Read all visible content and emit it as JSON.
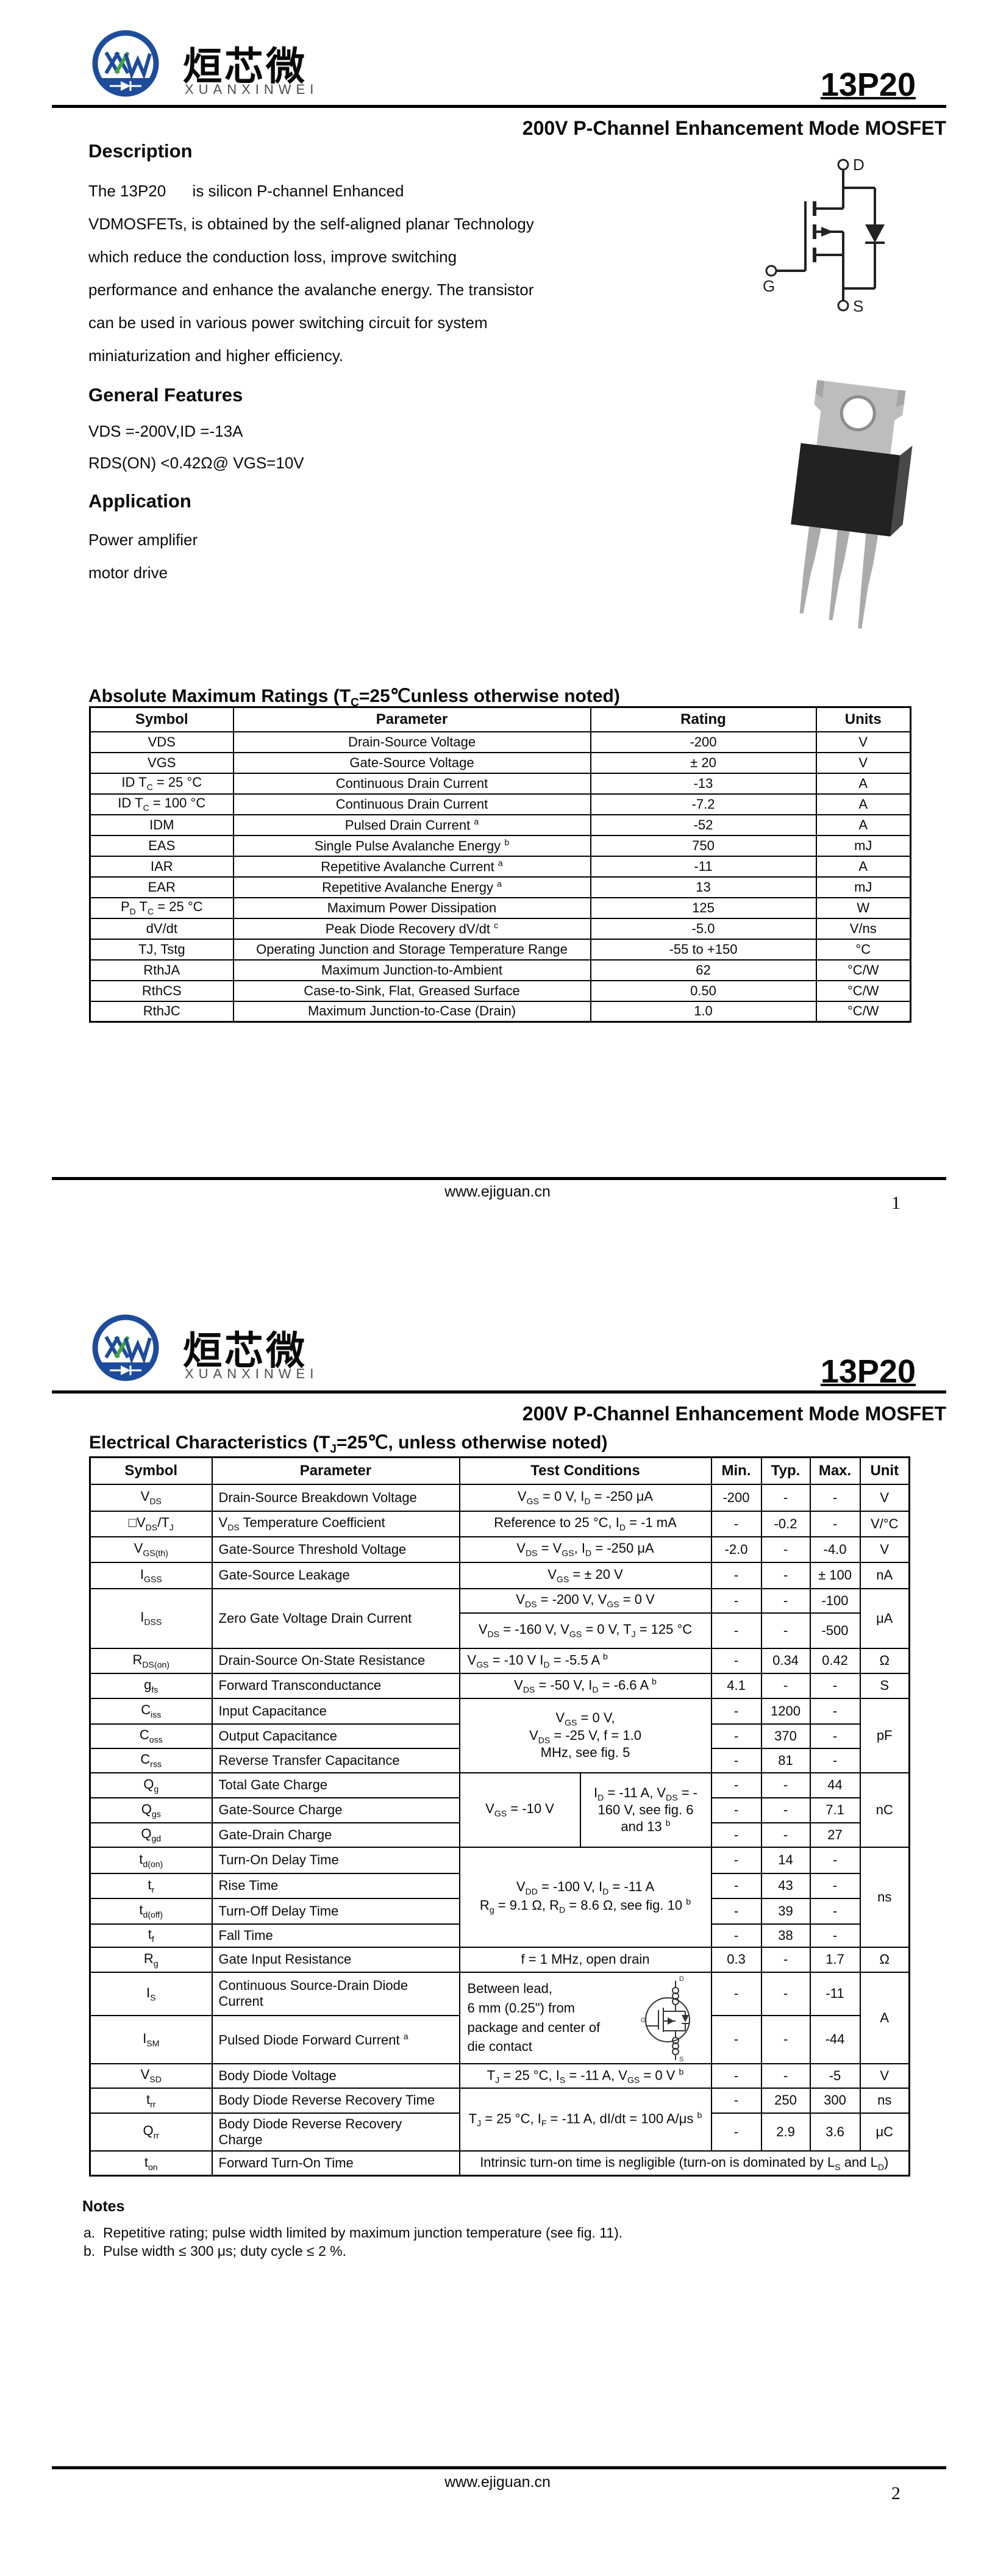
{
  "brand": {
    "chinese": "烜芯微",
    "romanized": "XUANXINWEI"
  },
  "header": {
    "part_number": "13P20",
    "subtitle": "200V P-Channel Enhancement Mode MOSFET"
  },
  "colors": {
    "logo_blue": "#1e4c9c",
    "logo_green": "#3fa43d",
    "text": "#0a0a0a"
  },
  "page1": {
    "description_title": "Description",
    "description_lines": [
      "The 13P20      is silicon P-channel Enhanced",
      "VDMOSFETs, is obtained by the self-aligned planar Technology",
      "which reduce the conduction loss, improve switching",
      "performance and enhance the avalanche energy. The transistor",
      "can be used in various power switching circuit for system",
      "miniaturization and higher efficiency."
    ],
    "features_title": "General Features",
    "features": [
      "VDS =-200V,ID =-13A",
      "RDS(ON) <0.42Ω@ VGS=10V"
    ],
    "application_title": "Application",
    "applications": [
      "Power amplifier",
      "motor drive"
    ],
    "symbol_labels": {
      "d": "D",
      "g": "G",
      "s": "S"
    },
    "abs": {
      "title": "Absolute Maximum Ratings (T~C~=25℃unless otherwise noted)",
      "headers": [
        "Symbol",
        "Parameter",
        "Rating",
        "Units"
      ],
      "rows": [
        [
          "VDS",
          "Drain-Source Voltage",
          "-200",
          "V"
        ],
        [
          "VGS",
          "Gate-Source Voltage",
          "± 20",
          "V"
        ],
        [
          "ID T~C~ = 25 °C",
          "Continuous Drain Current",
          "-13",
          "A"
        ],
        [
          "ID T~C~ = 100 °C",
          "Continuous Drain Current",
          "-7.2",
          "A"
        ],
        [
          "IDM",
          "Pulsed Drain Current ^a^",
          "-52",
          "A"
        ],
        [
          "EAS",
          "Single Pulse Avalanche Energy ^b^",
          "750",
          "mJ"
        ],
        [
          "IAR",
          "Repetitive Avalanche Current ^a^",
          "-11",
          "A"
        ],
        [
          "EAR",
          "Repetitive Avalanche Energy ^a^",
          "13",
          "mJ"
        ],
        [
          "P~D~ T~C~ = 25 °C",
          "Maximum Power Dissipation",
          "125",
          "W"
        ],
        [
          "dV/dt",
          "Peak Diode Recovery dV/dt ^c^",
          "-5.0",
          "V/ns"
        ],
        [
          "TJ, Tstg",
          "Operating Junction and Storage Temperature Range",
          "-55 to +150",
          "°C"
        ],
        [
          "RthJA",
          "Maximum Junction-to-Ambient",
          "62",
          "°C/W"
        ],
        [
          "RthCS",
          "Case-to-Sink, Flat, Greased Surface",
          "0.50",
          "°C/W"
        ],
        [
          "RthJC",
          "Maximum Junction-to-Case (Drain)",
          "1.0",
          "°C/W"
        ]
      ]
    },
    "footer": {
      "site": "www.ejiguan.cn",
      "page": "1"
    }
  },
  "page2": {
    "elec": {
      "title": "Electrical Characteristics (T~J~=25℃, unless otherwise noted)",
      "headers": [
        "Symbol",
        "Parameter",
        "Test Conditions",
        "Min.",
        "Typ.",
        "Max.",
        "Unit"
      ],
      "vds": {
        "sym": "V~DS~",
        "param": "Drain-Source Breakdown Voltage",
        "cond": "V~GS~ = 0 V, I~D~ = -250 μA",
        "min": "-200",
        "typ": "-",
        "max": "-",
        "unit": "V"
      },
      "tc": {
        "sym": "□V~DS~/T~J~",
        "param": "V~DS~ Temperature Coefficient",
        "cond": "Reference to 25 °C, I~D~ = -1 mA",
        "min": "-",
        "typ": "-0.2",
        "max": "-",
        "unit": "V/°C"
      },
      "vgsth": {
        "sym": "V~GS(th)~",
        "param": "Gate-Source Threshold Voltage",
        "cond": "V~DS~ = V~GS~, I~D~ = -250 μA",
        "min": "-2.0",
        "typ": "-",
        "max": "-4.0",
        "unit": "V"
      },
      "igss": {
        "sym": "I~GSS~",
        "param": "Gate-Source Leakage",
        "cond": "V~GS~ = ± 20 V",
        "min": "-",
        "typ": "-",
        "max": "± 100",
        "unit": "nA"
      },
      "idss": {
        "sym": "I~DSS~",
        "param": "Zero Gate Voltage Drain Current",
        "cond1": "V~DS~ = -200 V, V~GS~ = 0 V",
        "min1": "-",
        "typ1": "-",
        "max1": "-100",
        "cond2": "V~DS~ = -160 V, V~GS~ = 0 V, T~J~ = 125 °C",
        "min2": "-",
        "typ2": "-",
        "max2": "-500",
        "unit": "μA"
      },
      "rdson": {
        "sym": "R~DS(on)~",
        "param": "Drain-Source On-State Resistance",
        "cond": "V~GS~ = -10 V I~D~ = -5.5 A ^b^",
        "min": "-",
        "typ": "0.34",
        "max": "0.42",
        "unit": "Ω"
      },
      "gfs": {
        "sym": "g~fs~",
        "param": "Forward Transconductance",
        "cond": "V~DS~ = -50 V, I~D~ = -6.6 A ^b^",
        "min": "4.1",
        "typ": "-",
        "max": "-",
        "unit": "S"
      },
      "cap": {
        "cond": "V~GS~ = 0 V,\nV~DS~ = -25 V, f = 1.0\nMHz, see fig. 5",
        "unit": "pF",
        "ciss": {
          "sym": "C~iss~",
          "param": "Input Capacitance",
          "min": "-",
          "typ": "1200",
          "max": "-"
        },
        "coss": {
          "sym": "C~oss~",
          "param": "Output Capacitance",
          "min": "-",
          "typ": "370",
          "max": "-"
        },
        "crss": {
          "sym": "C~rss~",
          "param": "Reverse Transfer Capacitance",
          "min": "-",
          "typ": "81",
          "max": "-"
        }
      },
      "charge": {
        "cond_left": "V~GS~ = -10 V",
        "cond_right": "I~D~ = -11 A, V~DS~ = -\n160 V, see fig. 6\nand 13 ^b^",
        "unit": "nC",
        "qg": {
          "sym": "Q~g~",
          "param": "Total Gate Charge",
          "min": "-",
          "typ": "-",
          "max": "44"
        },
        "qgs": {
          "sym": "Q~gs~",
          "param": "Gate-Source Charge",
          "min": "-",
          "typ": "-",
          "max": "7.1"
        },
        "qgd": {
          "sym": "Q~gd~",
          "param": "Gate-Drain Charge",
          "min": "-",
          "typ": "-",
          "max": "27"
        }
      },
      "sw": {
        "cond": "V~DD~ = -100 V, I~D~ = -11 A\nR~g~ = 9.1 Ω, R~D~ = 8.6 Ω, see fig. 10 ^b^",
        "unit": "ns",
        "tdon": {
          "sym": "t~d(on)~",
          "param": "Turn-On Delay Time",
          "min": "-",
          "typ": "14",
          "max": "-"
        },
        "tr": {
          "sym": "t~r~",
          "param": "Rise Time",
          "min": "-",
          "typ": "43",
          "max": "-"
        },
        "tdoff": {
          "sym": "t~d(off)~",
          "param": "Turn-Off Delay Time",
          "min": "-",
          "typ": "39",
          "max": "-"
        },
        "tf": {
          "sym": "t~f~",
          "param": "Fall Time",
          "min": "-",
          "typ": "38",
          "max": "-"
        }
      },
      "rg": {
        "sym": "R~g~",
        "param": "Gate Input Resistance",
        "cond": "f = 1 MHz, open drain",
        "min": "0.3",
        "typ": "-",
        "max": "1.7",
        "unit": "Ω"
      },
      "diode": {
        "cond": "Between lead,\n6 mm (0.25\") from\npackage and center of\ndie contact",
        "unit": "A",
        "is": {
          "sym": "I~S~",
          "param": "Continuous Source-Drain Diode\nCurrent",
          "min": "-",
          "typ": "-",
          "max": "-11"
        },
        "ism": {
          "sym": "I~SM~",
          "param": "Pulsed Diode Forward Current ^a^",
          "min": "-",
          "typ": "-",
          "max": "-44"
        }
      },
      "vsd": {
        "sym": "V~SD~",
        "param": "Body Diode Voltage",
        "cond": "T~J~ = 25 °C, I~S~ = -11 A, V~GS~ = 0 V ^b^",
        "min": "-",
        "typ": "-",
        "max": "-5",
        "unit": "V"
      },
      "rr": {
        "cond": "T~J~ = 25 °C, I~F~ = -11 A, dI/dt = 100 A/μs ^b^",
        "trr": {
          "sym": "t~rr~",
          "param": "Body Diode Reverse Recovery Time",
          "min": "-",
          "typ": "250",
          "max": "300",
          "unit": "ns"
        },
        "qrr": {
          "sym": "Q~rr~",
          "param": "Body Diode Reverse Recovery\nCharge",
          "min": "-",
          "typ": "2.9",
          "max": "3.6",
          "unit": "μC"
        }
      },
      "ton": {
        "sym": "t~on~",
        "param": "Forward Turn-On Time",
        "cond": "Intrinsic turn-on time is negligible (turn-on is dominated by L~S~ and L~D~)"
      }
    },
    "notes_title": "Notes",
    "notes": [
      "a.  Repetitive rating; pulse width limited by maximum junction temperature (see fig. 11).",
      "b.  Pulse width ≤ 300 μs; duty cycle ≤ 2 %."
    ],
    "footer": {
      "site": "www.ejiguan.cn",
      "page": "2"
    }
  }
}
